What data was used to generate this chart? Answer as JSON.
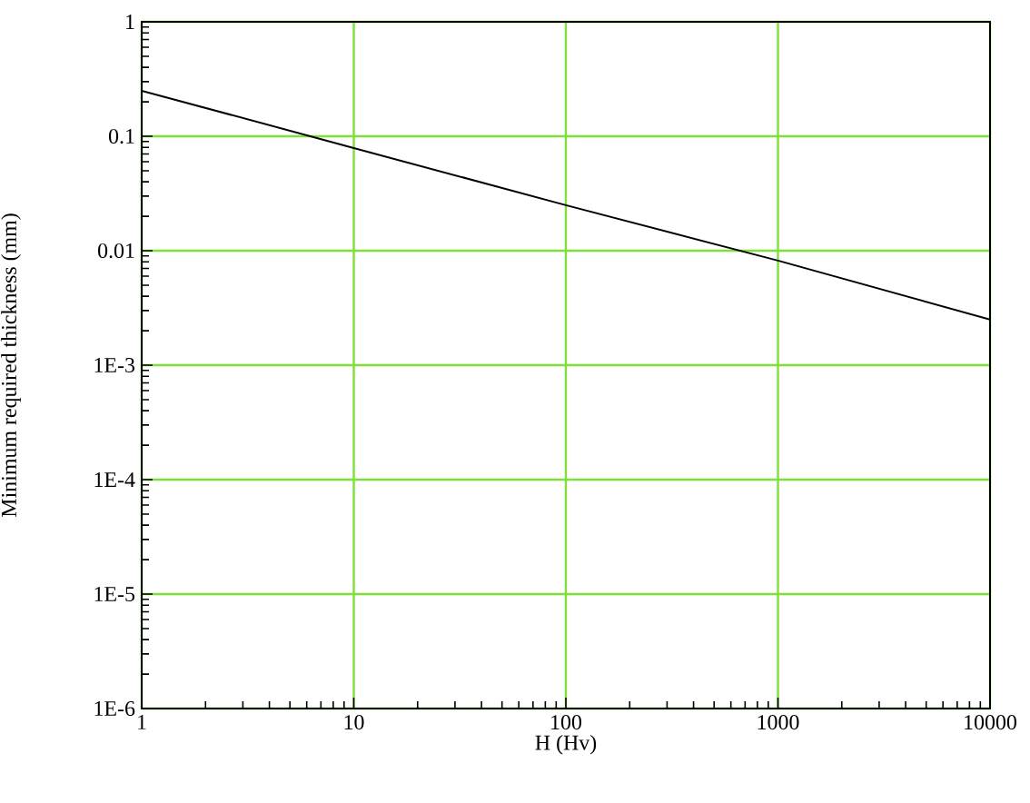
{
  "chart_data": {
    "type": "line",
    "xlabel": "H (Hv)",
    "ylabel": "Minimum required thickness (mm)",
    "x": [
      1,
      10,
      100,
      1000,
      10000
    ],
    "series": [
      {
        "color": "#000000",
        "values": [
          0.25,
          0.079,
          0.025,
          0.0082,
          0.0025
        ]
      }
    ],
    "log": "xy",
    "xlim": [
      1,
      10000
    ],
    "ylim": [
      1e-06,
      1
    ],
    "xticks": [
      1,
      10,
      100,
      1000,
      10000
    ],
    "yticks": [
      {
        "value": 1e-06,
        "label": "1E-6"
      },
      {
        "value": 1e-05,
        "label": "1E-5"
      },
      {
        "value": 0.0001,
        "label": "1E-4"
      },
      {
        "value": 0.001,
        "label": "1E-3"
      },
      0.01,
      0.1,
      1
    ],
    "grid": true,
    "marker": "none",
    "line_style": "solid"
  }
}
